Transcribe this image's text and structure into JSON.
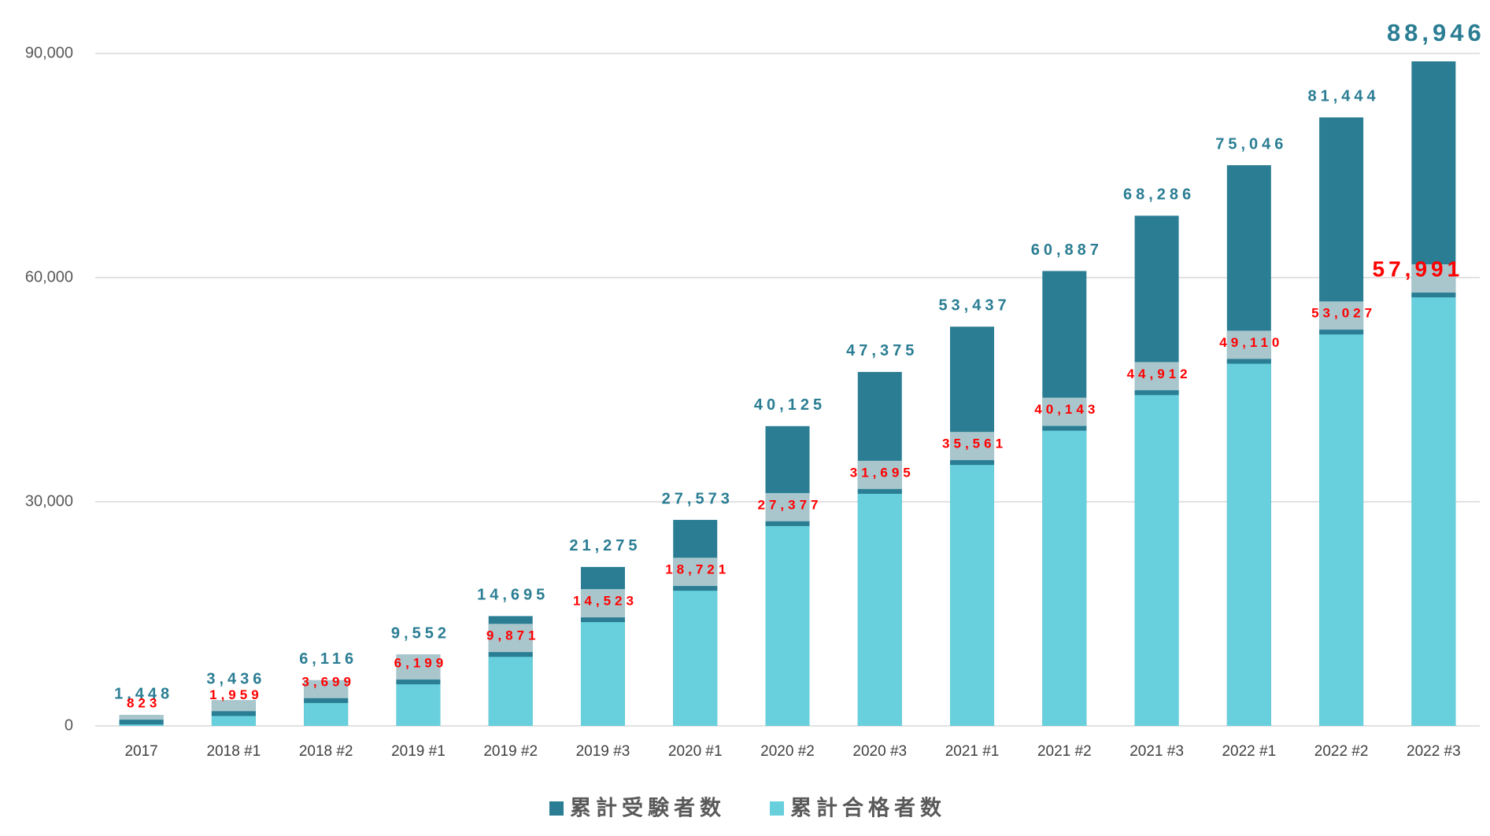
{
  "chart_data": {
    "type": "bar",
    "categories": [
      "2017",
      "2018 #1",
      "2018 #2",
      "2019 #1",
      "2019 #2",
      "2019 #3",
      "2020 #1",
      "2020 #2",
      "2020 #3",
      "2021 #1",
      "2021 #2",
      "2021 #3",
      "2022 #1",
      "2022 #2",
      "2022 #3"
    ],
    "series": [
      {
        "name": "累計受験者数",
        "color": "#2a7d93",
        "values": [
          1448,
          3436,
          6116,
          9552,
          14695,
          21275,
          27573,
          40125,
          47375,
          53437,
          60887,
          68286,
          75046,
          81444,
          88946
        ],
        "value_labels": [
          "1,448",
          "3,436",
          "6,116",
          "9,552",
          "14,695",
          "21,275",
          "27,573",
          "40,125",
          "47,375",
          "53,437",
          "60,887",
          "68,286",
          "75,046",
          "81,444",
          "88,946"
        ]
      },
      {
        "name": "累計合格者数",
        "color": "#67d0dc",
        "values": [
          823,
          1959,
          3699,
          6199,
          9871,
          14523,
          18721,
          27377,
          31695,
          35561,
          40143,
          44912,
          49110,
          53027,
          57991
        ],
        "value_labels": [
          "823",
          "1,959",
          "3,699",
          "6,199",
          "9,871",
          "14,523",
          "18,721",
          "27,377",
          "31,695",
          "35,561",
          "40,143",
          "44,912",
          "49,110",
          "53,027",
          "57,991"
        ]
      }
    ],
    "ylim": [
      0,
      90000
    ],
    "yticks": [
      0,
      {
        "value": 30000,
        "label": "30,000"
      },
      {
        "value": 60000,
        "label": "60,000"
      },
      {
        "value": 90000,
        "label": "90,000"
      }
    ],
    "grid": true,
    "legend": "bottom"
  }
}
